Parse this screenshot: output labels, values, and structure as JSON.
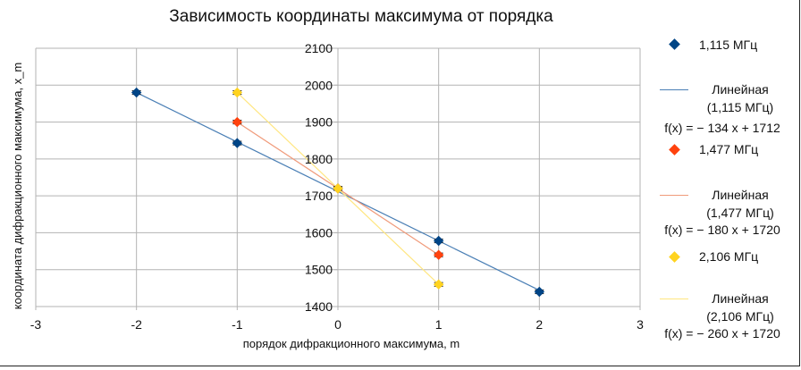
{
  "chart_data": {
    "type": "scatter",
    "title": "Зависимость координаты максимума от порядка",
    "xlabel": "порядок дифракционного максимума, m",
    "ylabel": "координата дифракционного максимума, x_m",
    "xlim": [
      -3,
      3
    ],
    "ylim": [
      1400,
      2100
    ],
    "xticks": [
      -3,
      -2,
      -1,
      0,
      1,
      2,
      3
    ],
    "yticks": [
      1400,
      1500,
      1600,
      1700,
      1800,
      1900,
      2000,
      2100
    ],
    "grid": true,
    "legend_position": "right",
    "series": [
      {
        "name": "1,115 МГц",
        "color": "#004586",
        "x": [
          -2,
          -1,
          0,
          1,
          2
        ],
        "y": [
          1980,
          1843,
          1720,
          1578,
          1440
        ],
        "error_y": 5,
        "trendline": {
          "name": "Линейная (1,115 МГц)",
          "equation": "f(x) = − 134 x + 1712",
          "slope": -134,
          "intercept": 1712,
          "color": "#4a7fb5"
        }
      },
      {
        "name": "1,477 МГц",
        "color": "#ff420e",
        "x": [
          -1,
          0,
          1
        ],
        "y": [
          1900,
          1720,
          1540
        ],
        "error_y": 5,
        "trendline": {
          "name": "Линейная (1,477 МГц)",
          "equation": "f(x) = − 180 x + 1720",
          "slope": -180,
          "intercept": 1720,
          "color": "#f09a7a"
        }
      },
      {
        "name": "2,106 МГц",
        "color": "#ffd320",
        "x": [
          -1,
          0,
          1
        ],
        "y": [
          1980,
          1720,
          1460
        ],
        "error_y": 5,
        "trendline": {
          "name": "Линейная (2,106 МГц)",
          "equation": "f(x) = − 260 x + 1720",
          "slope": -260,
          "intercept": 1720,
          "color": "#ffe680"
        }
      }
    ]
  }
}
